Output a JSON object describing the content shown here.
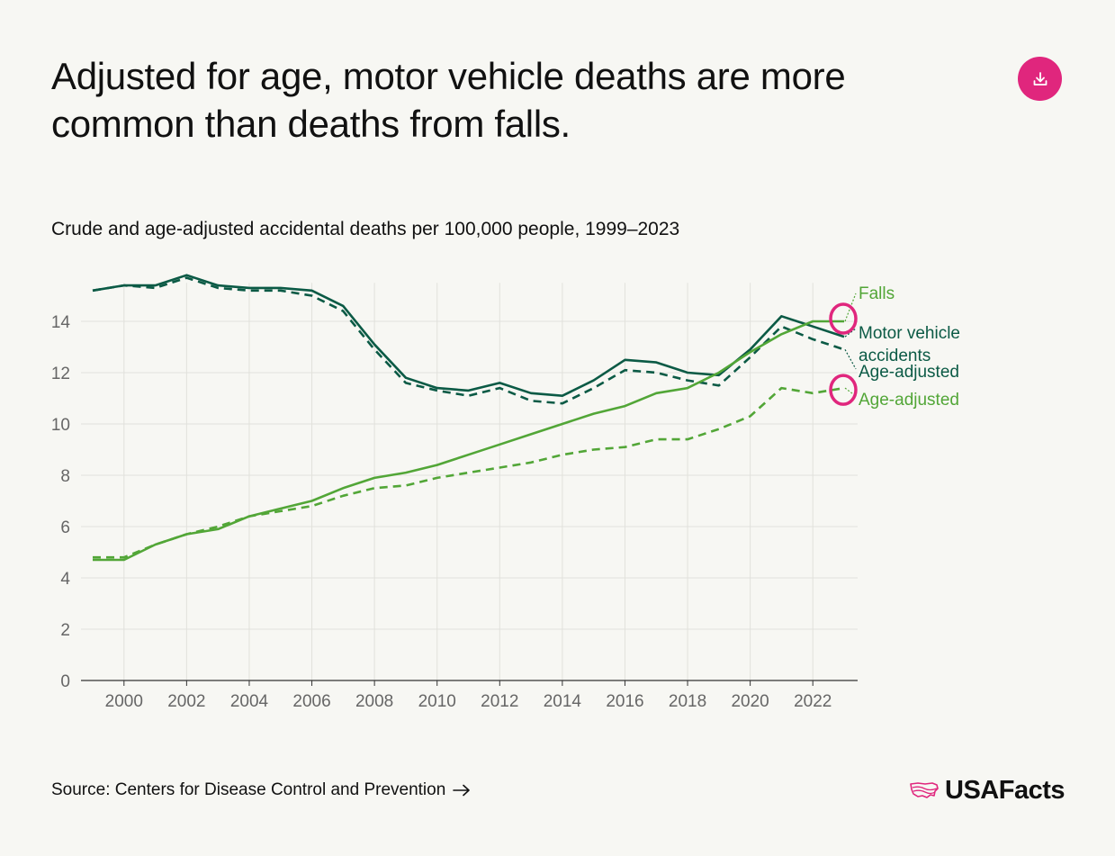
{
  "header": {
    "title": "Adjusted for age, motor vehicle deaths are more common than deaths from falls.",
    "subtitle": "Crude and age-adjusted accidental deaths per 100,000 people, 1999–2023"
  },
  "footer": {
    "source": "Source: Centers for Disease Control and Prevention",
    "brand": "USAFacts"
  },
  "colors": {
    "accent": "#e0267d",
    "motor_vehicle": "#0b5a45",
    "falls": "#52a637",
    "grid": "#e1e1dc",
    "axis": "#333333"
  },
  "icons": [
    "download-icon",
    "arrow-right-icon",
    "usa-map-icon"
  ],
  "chart_data": {
    "type": "line",
    "title": "Crude and age-adjusted accidental deaths per 100,000 people, 1999–2023",
    "xlabel": "",
    "ylabel": "",
    "x": [
      1999,
      2000,
      2001,
      2002,
      2003,
      2004,
      2005,
      2006,
      2007,
      2008,
      2009,
      2010,
      2011,
      2012,
      2013,
      2014,
      2015,
      2016,
      2017,
      2018,
      2019,
      2020,
      2021,
      2022,
      2023
    ],
    "xlim": [
      1999,
      2023
    ],
    "ylim": [
      0,
      15.5
    ],
    "xticks": [
      "2000",
      "2002",
      "2004",
      "2006",
      "2008",
      "2010",
      "2012",
      "2014",
      "2016",
      "2018",
      "2020",
      "2022"
    ],
    "yticks": [
      "0",
      "2",
      "4",
      "6",
      "8",
      "10",
      "12",
      "14"
    ],
    "grid": true,
    "series": [
      {
        "name": "Motor vehicle accidents",
        "style": "solid",
        "color": "#0b5a45",
        "values": [
          15.2,
          15.4,
          15.4,
          15.8,
          15.4,
          15.3,
          15.3,
          15.2,
          14.6,
          13.1,
          11.8,
          11.4,
          11.3,
          11.6,
          11.2,
          11.1,
          11.7,
          12.5,
          12.4,
          12.0,
          11.9,
          12.9,
          14.2,
          13.8,
          13.4
        ]
      },
      {
        "name": "Age-adjusted",
        "style": "dashed",
        "color": "#0b5a45",
        "values": [
          15.2,
          15.4,
          15.3,
          15.7,
          15.3,
          15.2,
          15.2,
          15.0,
          14.4,
          12.9,
          11.6,
          11.3,
          11.1,
          11.4,
          10.9,
          10.8,
          11.4,
          12.1,
          12.0,
          11.7,
          11.5,
          12.6,
          13.8,
          13.3,
          12.9
        ]
      },
      {
        "name": "Falls",
        "style": "solid",
        "color": "#52a637",
        "values": [
          4.7,
          4.7,
          5.3,
          5.7,
          5.9,
          6.4,
          6.7,
          7.0,
          7.5,
          7.9,
          8.1,
          8.4,
          8.8,
          9.2,
          9.6,
          10.0,
          10.4,
          10.7,
          11.2,
          11.4,
          12.0,
          12.8,
          13.5,
          14.0,
          14.0
        ]
      },
      {
        "name": "Age-adjusted",
        "style": "dashed",
        "color": "#52a637",
        "values": [
          4.8,
          4.8,
          5.3,
          5.7,
          6.0,
          6.4,
          6.6,
          6.8,
          7.2,
          7.5,
          7.6,
          7.9,
          8.1,
          8.3,
          8.5,
          8.8,
          9.0,
          9.1,
          9.4,
          9.4,
          9.8,
          10.3,
          11.4,
          11.2,
          11.4
        ]
      }
    ],
    "annotations": [
      {
        "text": "Falls",
        "color": "#52a637"
      },
      {
        "text": "Motor vehicle accidents",
        "color": "#0b5a45"
      },
      {
        "text": "Age-adjusted",
        "color": "#0b5a45"
      },
      {
        "text": "Age-adjusted",
        "color": "#52a637"
      }
    ]
  }
}
